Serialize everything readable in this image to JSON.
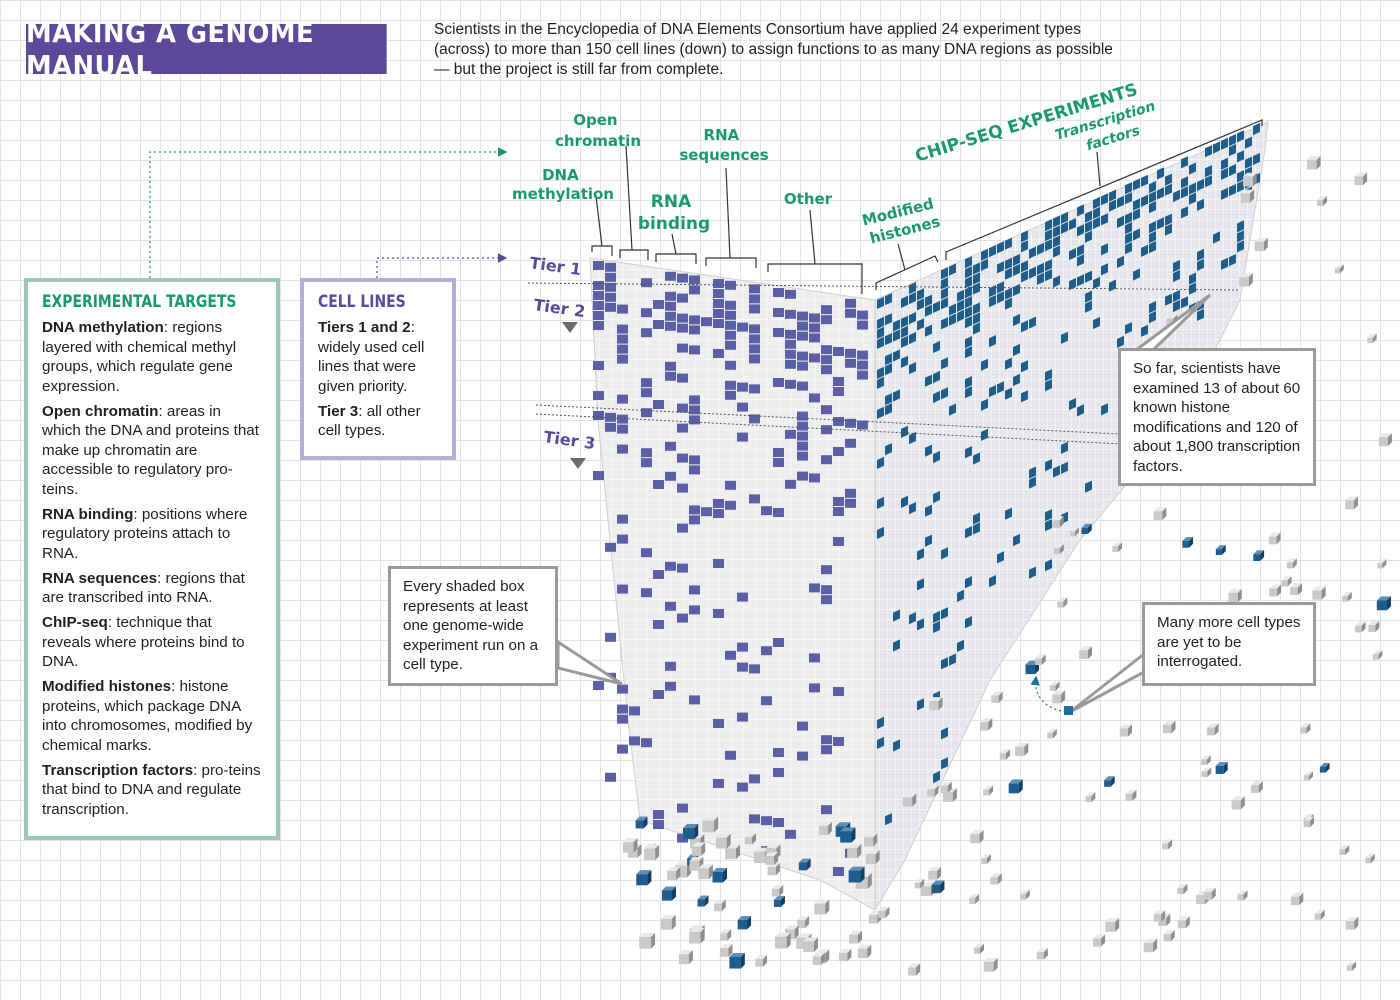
{
  "header": {
    "title": "MAKING A GENOME MANUAL",
    "intro": "Scientists in the Encyclopedia of DNA Elements Consortium have applied 24 experiment types (across) to more than 150 cell lines (down) to assign functions to as many DNA regions as possible — but the project is still far from complete."
  },
  "experimental_targets": {
    "title": "EXPERIMENTAL TARGETS",
    "items": [
      {
        "term": "DNA methylation",
        "text": ": regions layered with chemical methyl groups, which regulate gene expression."
      },
      {
        "term": "Open chromatin",
        "text": ": areas in which the DNA and proteins that make up chromatin are accessible to regulatory pro-teins."
      },
      {
        "term": "RNA binding",
        "text": ": positions where regulatory proteins attach to RNA."
      },
      {
        "term": "RNA sequences",
        "text": ": regions that are transcribed into RNA."
      },
      {
        "term": "ChIP-seq",
        "text": ": technique that reveals where proteins bind to DNA."
      },
      {
        "term": "Modified histones",
        "text": ": histone proteins, which package DNA into chromosomes, modified by chemical marks."
      },
      {
        "term": "Transcription factors",
        "text": ": pro-teins that bind to DNA and regulate transcription."
      }
    ]
  },
  "cell_lines": {
    "title": "CELL LINES",
    "items": [
      {
        "term": "Tiers 1 and 2",
        "text": ": widely used cell lines that were given priority."
      },
      {
        "term": "Tier 3",
        "text": ": all other cell types."
      }
    ]
  },
  "column_labels": {
    "dna_methylation": [
      "DNA",
      "methylation"
    ],
    "open_chromatin": [
      "Open",
      "chromatin"
    ],
    "rna_binding": [
      "RNA",
      "binding"
    ],
    "rna_sequences": [
      "RNA",
      "sequences"
    ],
    "other": "Other",
    "modified_histones": [
      "Modified",
      "histones"
    ],
    "chip_seq": "CHIP-SEQ EXPERIMENTS",
    "transcription_factors": [
      "Transcription",
      "factors"
    ]
  },
  "tiers": {
    "tier1": "Tier 1",
    "tier2": "Tier 2",
    "tier3": "Tier 3"
  },
  "callouts": {
    "shaded": "Every shaded box represents at least one genome-wide experiment run on a cell type.",
    "so_far": "So far, scientists have examined 13 of about 60 known histone modifications and 120 of about 1,800 transcription factors.",
    "more": "Many more cell types are yet to be interrogated."
  },
  "colors": {
    "accent_purple": "#5b4a9b",
    "accent_green": "#1a9a6c",
    "cell_fill": "#5a5fa8",
    "cell_fill_right": "#1f5e8c",
    "grid_light": "#eeeeee"
  }
}
